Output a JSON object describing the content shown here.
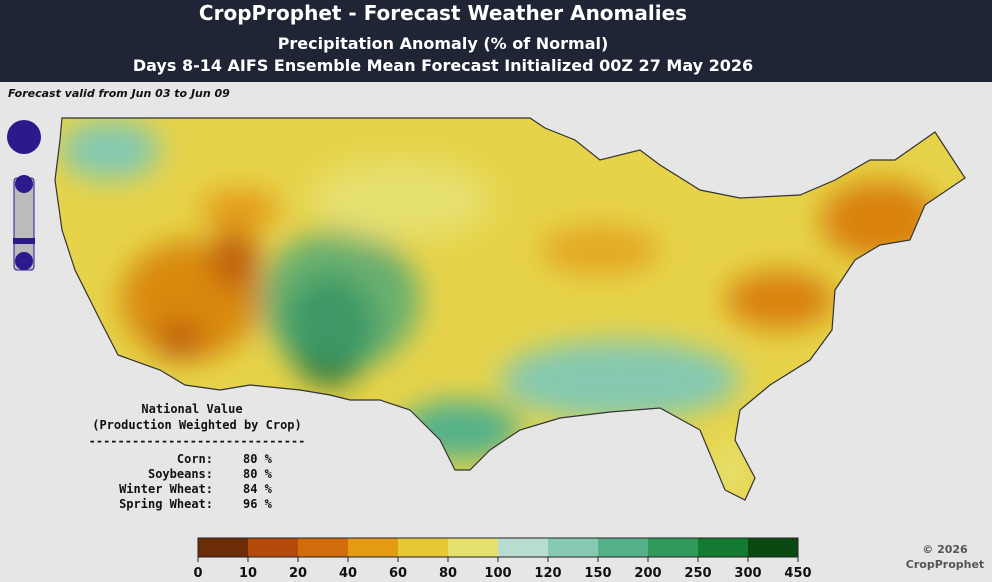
{
  "header": {
    "title": "CropProphet - Forecast Weather Anomalies",
    "subtitle": "Precipitation Anomaly (% of Normal)",
    "subtitle2": "Days 8-14 AIFS Ensemble Mean Forecast Initialized 00Z 27 May 2026"
  },
  "map": {
    "valid": "Forecast valid from Jun 03 to Jun 09"
  },
  "national": {
    "title": "National Value",
    "subtitle": "(Production Weighted by Crop)",
    "separator": "------------------------------",
    "rows": [
      [
        "Corn:",
        "80 %"
      ],
      [
        "Soybeans:",
        "80 %"
      ],
      [
        "Winter Wheat:",
        "84 %"
      ],
      [
        "Spring Wheat:",
        "96 %"
      ]
    ]
  },
  "legend": {
    "colors": [
      "#6b2c06",
      "#b44a0a",
      "#d36d0c",
      "#e49a12",
      "#e6c734",
      "#e6e06e",
      "#b9dcd0",
      "#84c9b0",
      "#55b18a",
      "#2f9a5c",
      "#137a32",
      "#0a4a12"
    ],
    "ticks": [
      0,
      10,
      20,
      40,
      60,
      80,
      100,
      120,
      150,
      200,
      250,
      300,
      450
    ]
  },
  "copyright": [
    "© 2026",
    "CropProphet"
  ]
}
